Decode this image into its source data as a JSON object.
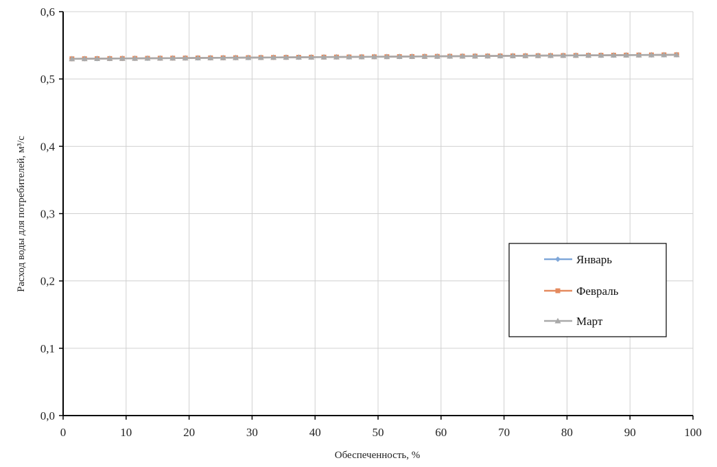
{
  "chart_data": {
    "type": "line",
    "title": "",
    "xlabel": "Обеспеченность, %",
    "ylabel": "Расход воды  для потребителей, м³/с",
    "xlim": [
      0,
      100
    ],
    "ylim": [
      0,
      0.6
    ],
    "x_ticks": [
      "0",
      "10",
      "20",
      "30",
      "40",
      "50",
      "60",
      "70",
      "80",
      "90",
      "100"
    ],
    "y_ticks": [
      "0,0",
      "0,1",
      "0,2",
      "0,3",
      "0,4",
      "0,5",
      "0,6"
    ],
    "grid": true,
    "legend_position": "right",
    "x": [
      1.4,
      3.4,
      5.4,
      7.4,
      9.4,
      11.4,
      13.4,
      15.4,
      17.4,
      19.4,
      21.4,
      23.4,
      25.4,
      27.4,
      29.4,
      31.4,
      33.4,
      35.4,
      37.4,
      39.4,
      41.4,
      43.4,
      45.4,
      47.4,
      49.4,
      51.4,
      53.4,
      55.4,
      57.4,
      59.4,
      61.4,
      63.4,
      65.4,
      67.4,
      69.4,
      71.4,
      73.4,
      75.4,
      77.4,
      79.4,
      81.4,
      83.4,
      85.4,
      87.4,
      89.4,
      91.4,
      93.4,
      95.4,
      97.4
    ],
    "series": [
      {
        "name": "Январь",
        "color": "#7fa7d9",
        "marker": "diamond",
        "y_start": 0.53,
        "y_end": 0.536
      },
      {
        "name": "Февраль",
        "color": "#e48a5e",
        "marker": "square",
        "y_start": 0.53,
        "y_end": 0.536
      },
      {
        "name": "Март",
        "color": "#a9a9a9",
        "marker": "triangle",
        "y_start": 0.53,
        "y_end": 0.536
      }
    ]
  }
}
